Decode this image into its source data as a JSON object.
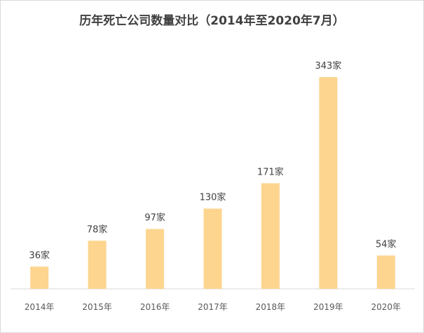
{
  "chart_data": {
    "type": "bar",
    "title": "历年死亡公司数量对比（2014年至2020年7月）",
    "categories": [
      "2014年",
      "2015年",
      "2016年",
      "2017年",
      "2018年",
      "2019年",
      "2020年"
    ],
    "values": [
      36,
      78,
      97,
      130,
      171,
      343,
      54
    ],
    "data_labels": [
      "36家",
      "78家",
      "97家",
      "130家",
      "171家",
      "343家",
      "54家"
    ],
    "xlabel": "",
    "ylabel": "",
    "ylim": [
      0,
      350
    ],
    "grid": false,
    "legend": "none",
    "bar_color": "#fdd58f"
  }
}
